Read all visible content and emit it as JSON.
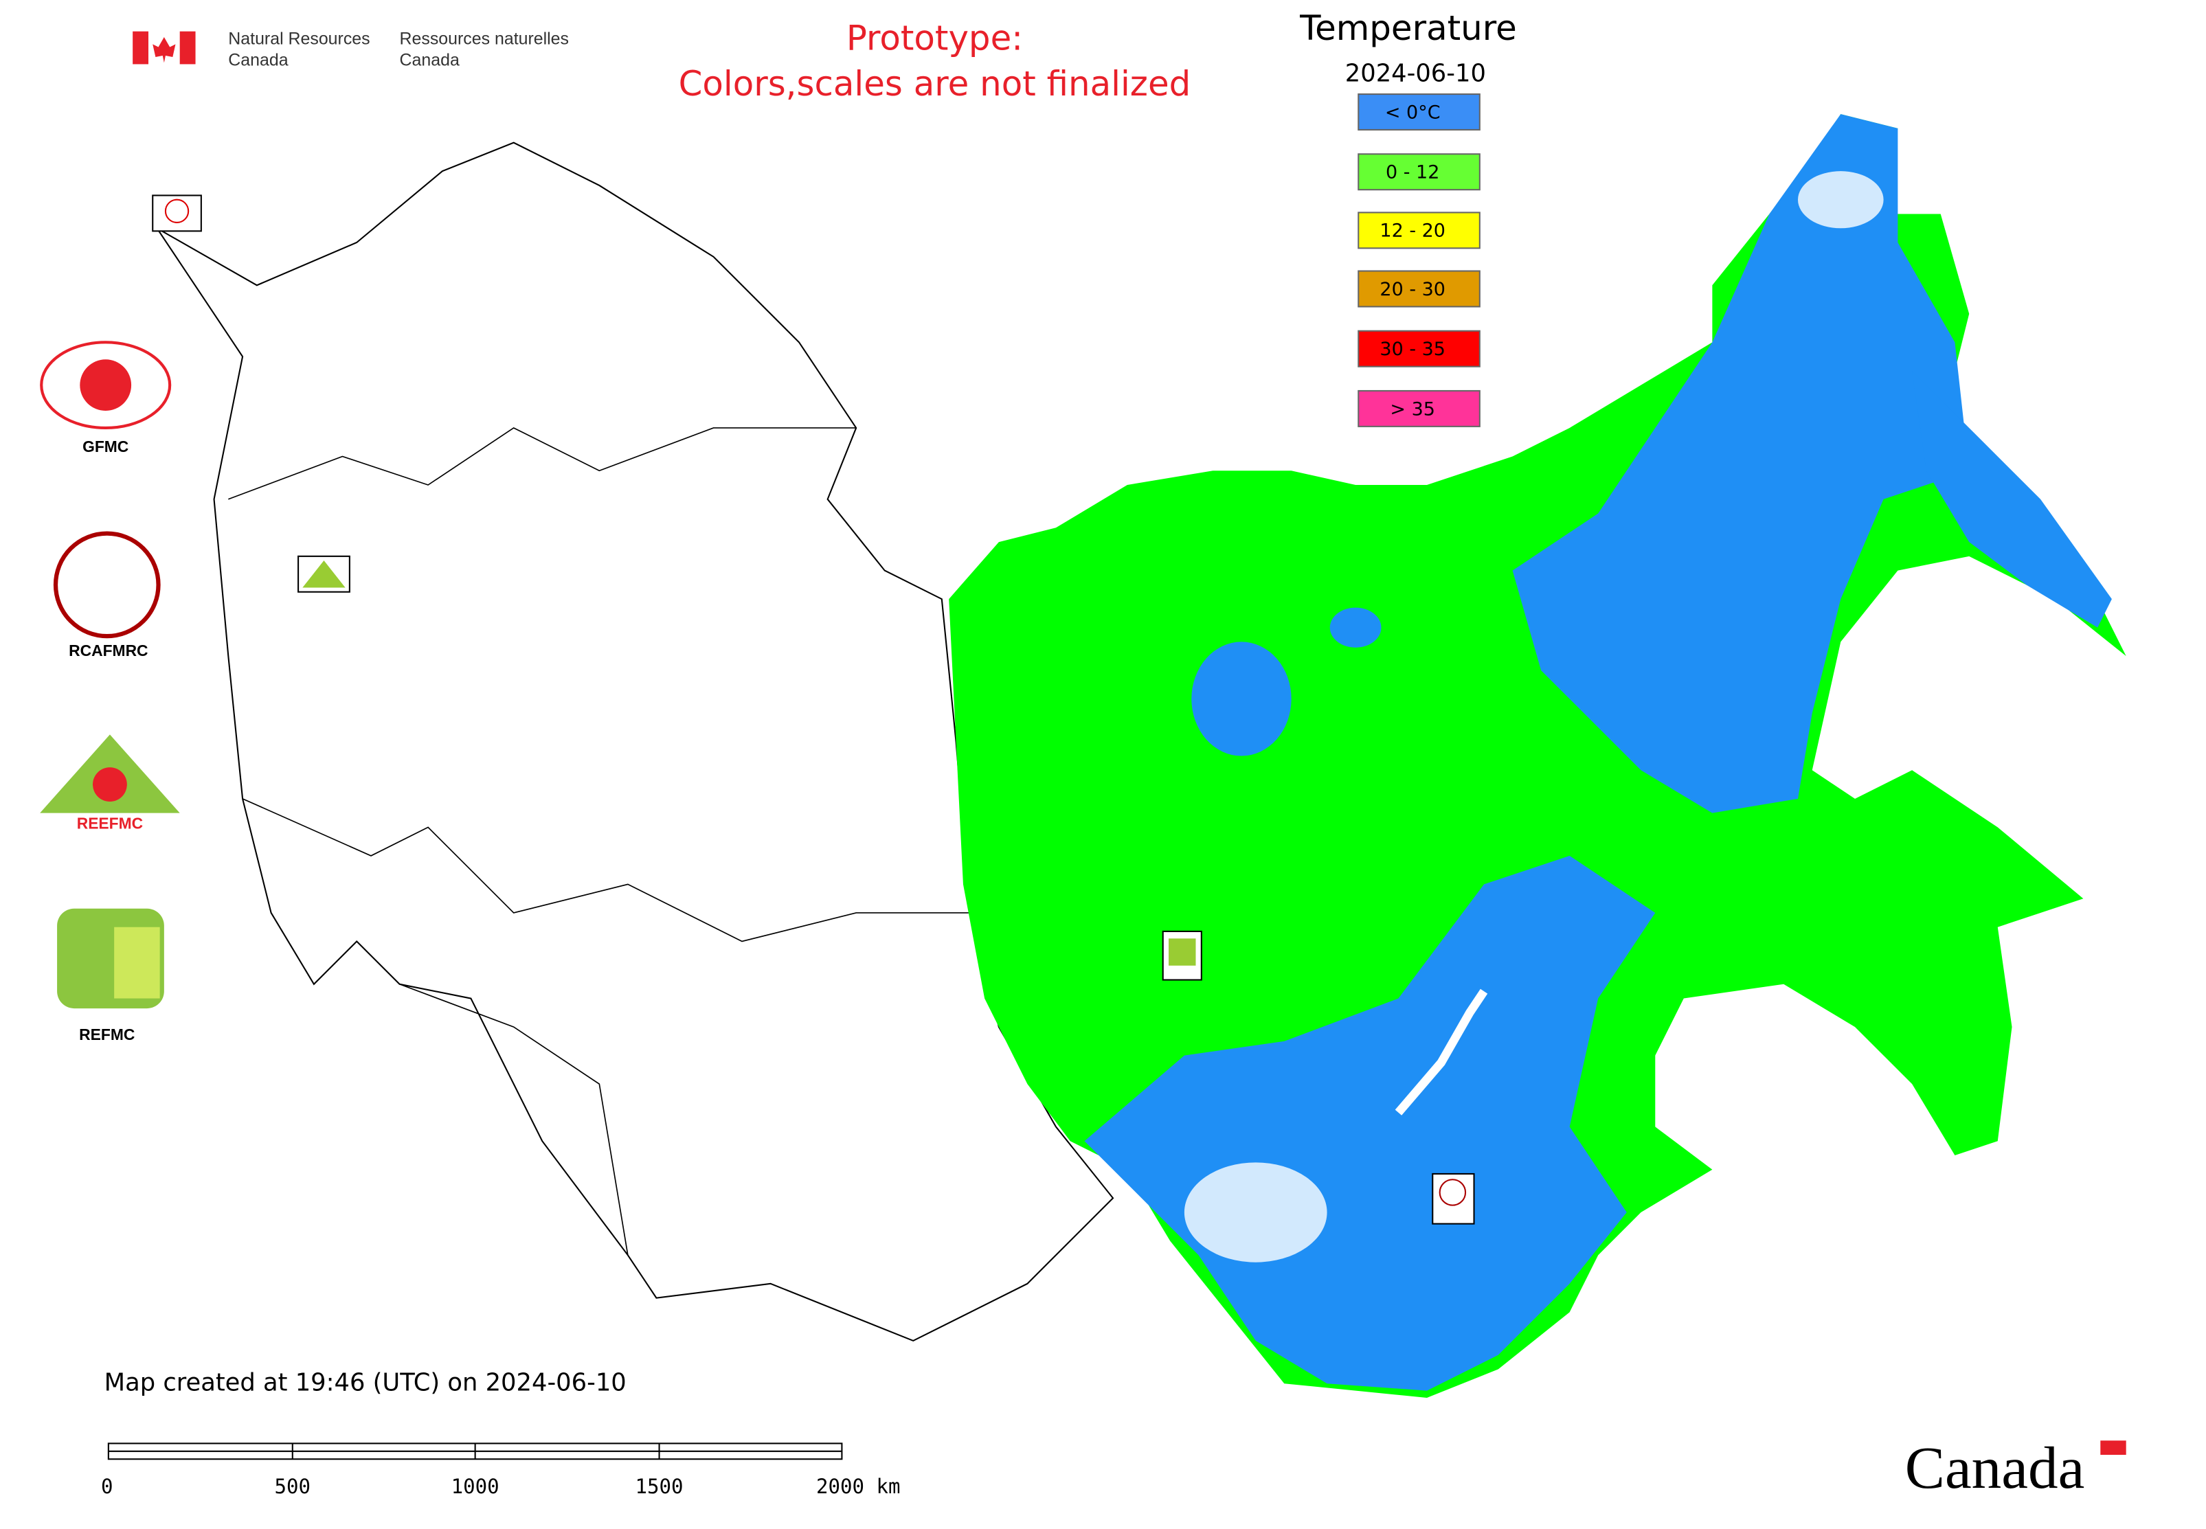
{
  "header": {
    "department_en": [
      "Natural Resources",
      "Canada"
    ],
    "department_fr": [
      "Ressources naturelles",
      "Canada"
    ],
    "notice": [
      "Prototype:",
      "Colors,scales are not finalized"
    ]
  },
  "legend": {
    "title": "Temperature",
    "date": "2024-06-10",
    "items": [
      {
        "label": "< 0°C",
        "color": "#3a8ef6"
      },
      {
        "label": "0 - 12",
        "color": "#66ff33"
      },
      {
        "label": "12 - 20",
        "color": "#ffff00"
      },
      {
        "label": "20 - 30",
        "color": "#e09a00"
      },
      {
        "label": "30 - 35",
        "color": "#ff0000"
      },
      {
        "label": "> 35",
        "color": "#ff3399"
      }
    ]
  },
  "logos": [
    "GFMC",
    "RCAFMRC",
    "REEFMC",
    "REFMC"
  ],
  "footer": {
    "created": "Map created at 19:46 (UTC) on 2024-06-10",
    "scale_labels": [
      "0",
      "500",
      "1000",
      "1500",
      "2000 km"
    ],
    "wordmark": "Canada"
  }
}
